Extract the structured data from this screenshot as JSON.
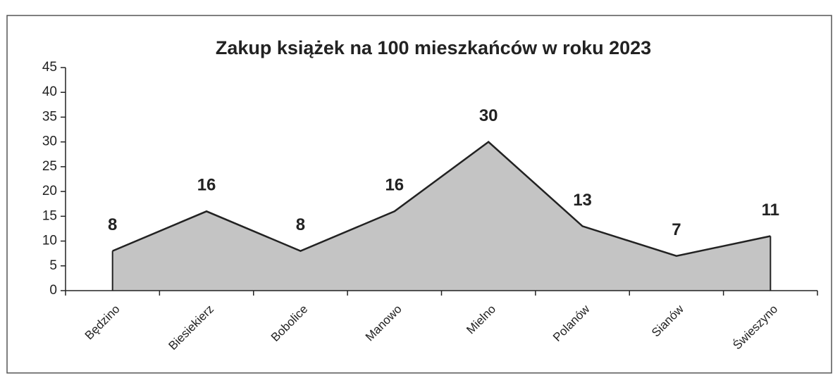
{
  "chart_data": {
    "type": "area",
    "title": "Zakup książek na 100 mieszkańców w roku 2023",
    "categories": [
      "Będzino",
      "Biesiekierz",
      "Bobolice",
      "Manowo",
      "Mielno",
      "Polanów",
      "Sianów",
      "Świeszyno"
    ],
    "values": [
      8,
      16,
      8,
      16,
      30,
      13,
      7,
      11
    ],
    "color": "#c4c4c4",
    "ylim": [
      0,
      45
    ],
    "yticks": [
      0,
      5,
      10,
      15,
      20,
      25,
      30,
      35,
      40,
      45
    ],
    "data_labels": true
  }
}
